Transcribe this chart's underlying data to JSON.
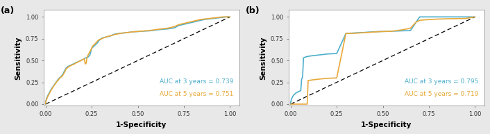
{
  "panel_a": {
    "label": "(a)",
    "auc_3yr": 0.739,
    "auc_5yr": 0.751,
    "color_3yr": "#4DAECC",
    "color_5yr": "#E8A838",
    "roc_3yr_x": [
      0.0,
      0.0,
      0.005,
      0.01,
      0.015,
      0.02,
      0.03,
      0.04,
      0.05,
      0.06,
      0.07,
      0.08,
      0.09,
      0.1,
      0.105,
      0.11,
      0.12,
      0.13,
      0.14,
      0.15,
      0.16,
      0.17,
      0.18,
      0.19,
      0.2,
      0.21,
      0.215,
      0.22,
      0.23,
      0.24,
      0.25,
      0.255,
      0.26,
      0.27,
      0.28,
      0.29,
      0.3,
      0.31,
      0.32,
      0.33,
      0.34,
      0.35,
      0.36,
      0.37,
      0.38,
      0.39,
      0.4,
      0.42,
      0.44,
      0.46,
      0.48,
      0.5,
      0.52,
      0.54,
      0.56,
      0.58,
      0.6,
      0.62,
      0.64,
      0.66,
      0.68,
      0.7,
      0.72,
      0.74,
      0.76,
      0.78,
      0.8,
      0.82,
      0.84,
      0.86,
      0.88,
      0.9,
      0.92,
      0.94,
      0.96,
      0.98,
      1.0
    ],
    "roc_3yr_y": [
      0.0,
      0.03,
      0.06,
      0.09,
      0.11,
      0.13,
      0.17,
      0.2,
      0.23,
      0.26,
      0.29,
      0.31,
      0.33,
      0.37,
      0.39,
      0.41,
      0.43,
      0.44,
      0.45,
      0.46,
      0.47,
      0.48,
      0.49,
      0.5,
      0.51,
      0.52,
      0.53,
      0.53,
      0.54,
      0.56,
      0.64,
      0.65,
      0.66,
      0.68,
      0.7,
      0.73,
      0.75,
      0.76,
      0.765,
      0.77,
      0.775,
      0.78,
      0.79,
      0.8,
      0.805,
      0.808,
      0.812,
      0.815,
      0.82,
      0.825,
      0.83,
      0.832,
      0.835,
      0.838,
      0.84,
      0.843,
      0.85,
      0.855,
      0.858,
      0.862,
      0.868,
      0.875,
      0.9,
      0.91,
      0.92,
      0.93,
      0.94,
      0.95,
      0.96,
      0.97,
      0.975,
      0.98,
      0.985,
      0.99,
      0.995,
      1.0,
      1.0
    ],
    "roc_5yr_x": [
      0.0,
      0.0,
      0.005,
      0.01,
      0.015,
      0.02,
      0.03,
      0.04,
      0.05,
      0.06,
      0.07,
      0.08,
      0.09,
      0.1,
      0.105,
      0.11,
      0.12,
      0.13,
      0.14,
      0.15,
      0.16,
      0.17,
      0.18,
      0.19,
      0.2,
      0.21,
      0.215,
      0.22,
      0.225,
      0.23,
      0.24,
      0.25,
      0.255,
      0.26,
      0.265,
      0.27,
      0.28,
      0.29,
      0.3,
      0.31,
      0.32,
      0.34,
      0.36,
      0.38,
      0.4,
      0.42,
      0.44,
      0.46,
      0.48,
      0.5,
      0.52,
      0.54,
      0.56,
      0.58,
      0.6,
      0.62,
      0.64,
      0.66,
      0.68,
      0.7,
      0.72,
      0.74,
      0.76,
      0.78,
      0.8,
      0.82,
      0.84,
      0.86,
      0.88,
      0.9,
      0.92,
      0.94,
      0.96,
      0.98,
      1.0
    ],
    "roc_5yr_y": [
      0.0,
      0.025,
      0.05,
      0.08,
      0.1,
      0.12,
      0.16,
      0.195,
      0.225,
      0.255,
      0.28,
      0.305,
      0.32,
      0.355,
      0.375,
      0.4,
      0.42,
      0.435,
      0.445,
      0.455,
      0.465,
      0.478,
      0.488,
      0.498,
      0.508,
      0.52,
      0.46,
      0.47,
      0.54,
      0.56,
      0.6,
      0.64,
      0.665,
      0.675,
      0.685,
      0.695,
      0.72,
      0.74,
      0.745,
      0.755,
      0.765,
      0.778,
      0.788,
      0.8,
      0.808,
      0.815,
      0.82,
      0.825,
      0.83,
      0.833,
      0.836,
      0.84,
      0.843,
      0.848,
      0.855,
      0.86,
      0.865,
      0.87,
      0.878,
      0.89,
      0.91,
      0.92,
      0.93,
      0.94,
      0.95,
      0.96,
      0.97,
      0.975,
      0.98,
      0.985,
      0.99,
      0.995,
      1.0,
      1.0,
      1.0
    ]
  },
  "panel_b": {
    "label": "(b)",
    "auc_3yr": 0.795,
    "auc_5yr": 0.719,
    "color_3yr": "#4DAECC",
    "color_5yr": "#E8A838",
    "roc_3yr_x": [
      0.0,
      0.0,
      0.003,
      0.005,
      0.01,
      0.015,
      0.02,
      0.025,
      0.03,
      0.04,
      0.05,
      0.055,
      0.06,
      0.065,
      0.07,
      0.08,
      0.09,
      0.1,
      0.12,
      0.14,
      0.16,
      0.18,
      0.2,
      0.25,
      0.3,
      0.32,
      0.34,
      0.36,
      0.38,
      0.4,
      0.42,
      0.44,
      0.46,
      0.48,
      0.5,
      0.55,
      0.6,
      0.65,
      0.7,
      0.72,
      0.74,
      0.76,
      0.78,
      0.8,
      0.85,
      0.9,
      0.95,
      1.0
    ],
    "roc_3yr_y": [
      0.0,
      0.02,
      0.04,
      0.06,
      0.08,
      0.1,
      0.11,
      0.12,
      0.13,
      0.14,
      0.15,
      0.155,
      0.29,
      0.31,
      0.53,
      0.54,
      0.545,
      0.55,
      0.555,
      0.56,
      0.565,
      0.57,
      0.575,
      0.58,
      0.81,
      0.812,
      0.815,
      0.818,
      0.82,
      0.822,
      0.825,
      0.828,
      0.83,
      0.832,
      0.833,
      0.836,
      0.84,
      0.843,
      1.0,
      1.0,
      1.0,
      1.0,
      1.0,
      1.0,
      1.0,
      1.0,
      1.0,
      1.0
    ],
    "roc_5yr_x": [
      0.0,
      0.0,
      0.003,
      0.005,
      0.01,
      0.015,
      0.02,
      0.025,
      0.03,
      0.04,
      0.05,
      0.055,
      0.06,
      0.065,
      0.07,
      0.08,
      0.09,
      0.095,
      0.1,
      0.12,
      0.14,
      0.16,
      0.18,
      0.2,
      0.25,
      0.3,
      0.35,
      0.4,
      0.42,
      0.44,
      0.46,
      0.48,
      0.5,
      0.55,
      0.6,
      0.65,
      0.68,
      0.7,
      0.72,
      0.74,
      0.76,
      0.78,
      0.8,
      0.85,
      0.9,
      0.95,
      1.0
    ],
    "roc_5yr_y": [
      0.0,
      0.0,
      0.0,
      0.0,
      0.0,
      0.0,
      0.0,
      0.0,
      0.0,
      0.0,
      0.0,
      0.0,
      0.0,
      0.0,
      0.0,
      0.0,
      0.0,
      0.27,
      0.272,
      0.278,
      0.283,
      0.288,
      0.292,
      0.296,
      0.3,
      0.81,
      0.812,
      0.82,
      0.822,
      0.825,
      0.828,
      0.83,
      0.832,
      0.836,
      0.85,
      0.87,
      0.94,
      0.96,
      0.965,
      0.968,
      0.97,
      0.973,
      0.975,
      0.978,
      0.98,
      0.982,
      1.0
    ]
  },
  "xlabel": "1-Specificity",
  "ylabel": "Sensitivity",
  "xlim": [
    -0.01,
    1.05
  ],
  "ylim": [
    -0.02,
    1.08
  ],
  "xticks": [
    0.0,
    0.25,
    0.5,
    0.75,
    1.0
  ],
  "yticks": [
    0.0,
    0.25,
    0.5,
    0.75,
    1.0
  ],
  "bg_color": "#FFFFFF",
  "fig_bg": "#E8E8E8",
  "linewidth": 1.2,
  "ann_fontsize": 6.5,
  "label_fontsize": 7.5,
  "tick_fontsize": 6.0
}
